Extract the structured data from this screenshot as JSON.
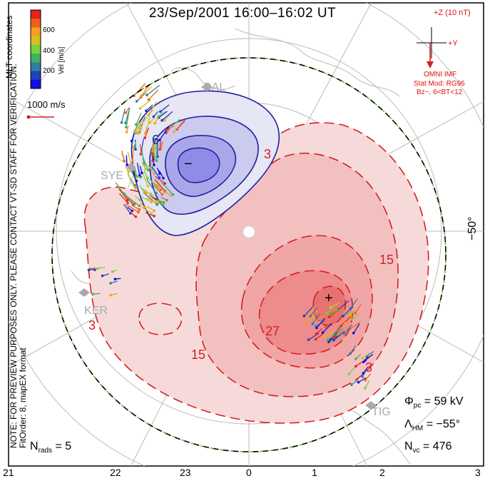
{
  "header": {
    "title": "23/Sep/2001  16:00–16:02  UT"
  },
  "left_notes": {
    "line1": "NOTE: FOR PREVIEW PURPOSES ONLY. PLEASE CONTACT VT-SD STAFF FOR VERIFICATION.",
    "line2": "FitOrder: 8, mapEX format"
  },
  "colorbar": {
    "label": "Vel [m/s]",
    "coords_label": "MLT coordinates",
    "ticks": [
      "600",
      "400",
      "200"
    ],
    "colors": [
      "#e8201a",
      "#f06018",
      "#f5a020",
      "#d4c020",
      "#78d040",
      "#40b060",
      "#3080a0",
      "#2040c0",
      "#1010e0"
    ]
  },
  "reference_vector": {
    "label": "1000 m/s"
  },
  "imf": {
    "z_label": "+Z (10 nT)",
    "y_label": "+Y",
    "model_label": "OMNI IMF",
    "stat_line1": "Stat Mod: RG96",
    "stat_line2": "Bz−, 6<BT<12"
  },
  "radars": [
    "BAL",
    "SYE",
    "KER",
    "TIG"
  ],
  "latitude_label": "−50°",
  "contours": {
    "labels": [
      "6",
      "3",
      "3",
      "15",
      "15",
      "27",
      "3"
    ],
    "min_marker": "−",
    "max_marker": "+"
  },
  "stats": {
    "phi_pc": "Φ",
    "phi_sub": "pc",
    "phi_val": "= 59 kV",
    "lam": "Λ",
    "lam_sub": "HM",
    "lam_val": "= −55°",
    "nvc": "N",
    "nvc_sub": "vc",
    "nvc_val": "= 476",
    "nrads": "N",
    "nrads_sub": "rads",
    "nrads_val": "= 5"
  },
  "mlt_axis": [
    "21",
    "22",
    "23",
    "0",
    "1",
    "2",
    "3"
  ]
}
